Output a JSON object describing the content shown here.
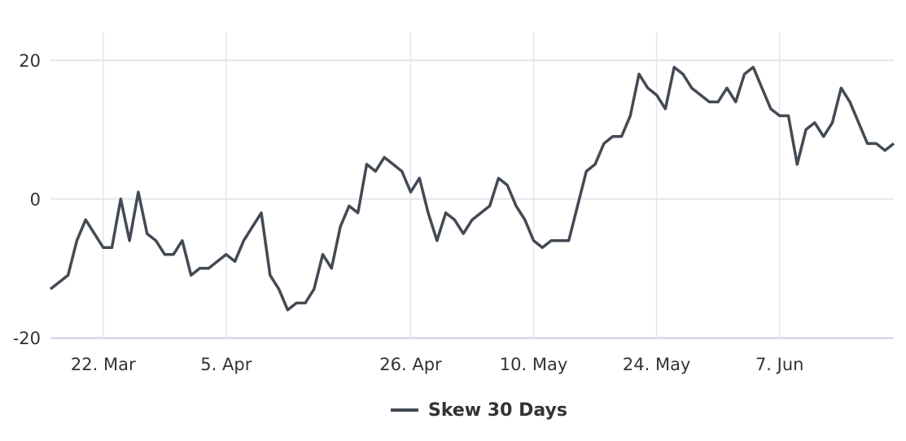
{
  "chart_data": {
    "type": "line",
    "categories": [
      null,
      null,
      null,
      null,
      null,
      null,
      "22. Mar",
      null,
      null,
      null,
      null,
      null,
      null,
      null,
      null,
      null,
      null,
      null,
      null,
      null,
      "5. Apr",
      null,
      null,
      null,
      null,
      null,
      null,
      null,
      null,
      null,
      null,
      null,
      null,
      null,
      null,
      null,
      null,
      null,
      null,
      null,
      null,
      "26. Apr",
      null,
      null,
      null,
      null,
      null,
      null,
      null,
      null,
      null,
      null,
      null,
      null,
      null,
      "10. May",
      null,
      null,
      null,
      null,
      null,
      null,
      null,
      null,
      null,
      null,
      null,
      null,
      null,
      "24. May",
      null,
      null,
      null,
      null,
      null,
      null,
      null,
      null,
      null,
      null,
      null,
      null,
      null,
      "7. Jun",
      null,
      null,
      null,
      null,
      null,
      null,
      null,
      null,
      null,
      null,
      null,
      null,
      null
    ],
    "series": [
      {
        "name": "Skew 30 Days",
        "color": "#434a54",
        "values": [
          -13,
          -12,
          -11,
          -6,
          -3,
          -5,
          -7,
          -7,
          0,
          -6,
          1,
          -5,
          -6,
          -8,
          -8,
          -6,
          -11,
          -10,
          -10,
          -9,
          -8,
          -9,
          -6,
          -4,
          -2,
          -11,
          -13,
          -16,
          -15,
          -15,
          -13,
          -8,
          -10,
          -4,
          -1,
          -2,
          5,
          4,
          6,
          5,
          4,
          1,
          3,
          -2,
          -6,
          -2,
          -3,
          -5,
          -3,
          -2,
          -1,
          3,
          2,
          -1,
          -3,
          -6,
          -7,
          -6,
          -6,
          -6,
          -1,
          4,
          5,
          8,
          9,
          9,
          12,
          18,
          16,
          15,
          13,
          19,
          18,
          16,
          15,
          14,
          14,
          16,
          14,
          18,
          19,
          16,
          13,
          12,
          12,
          5,
          10,
          11,
          9,
          11,
          16,
          14,
          11,
          8,
          8,
          7,
          8
        ]
      }
    ],
    "ylim": [
      -20,
      24
    ],
    "yticks": [
      -20,
      0,
      20
    ],
    "grid": true
  }
}
